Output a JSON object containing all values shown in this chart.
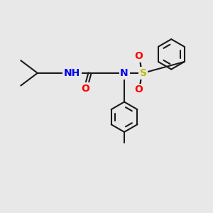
{
  "background_color": "#e8e8e8",
  "bond_color": "#1a1a1a",
  "bond_width": 1.5,
  "atom_colors": {
    "N": "#0000ee",
    "O": "#ff0000",
    "S": "#bbbb00",
    "H": "#555555",
    "C": "#1a1a1a"
  },
  "font_size_atom": 10,
  "figsize": [
    3.0,
    3.0
  ],
  "dpi": 100
}
